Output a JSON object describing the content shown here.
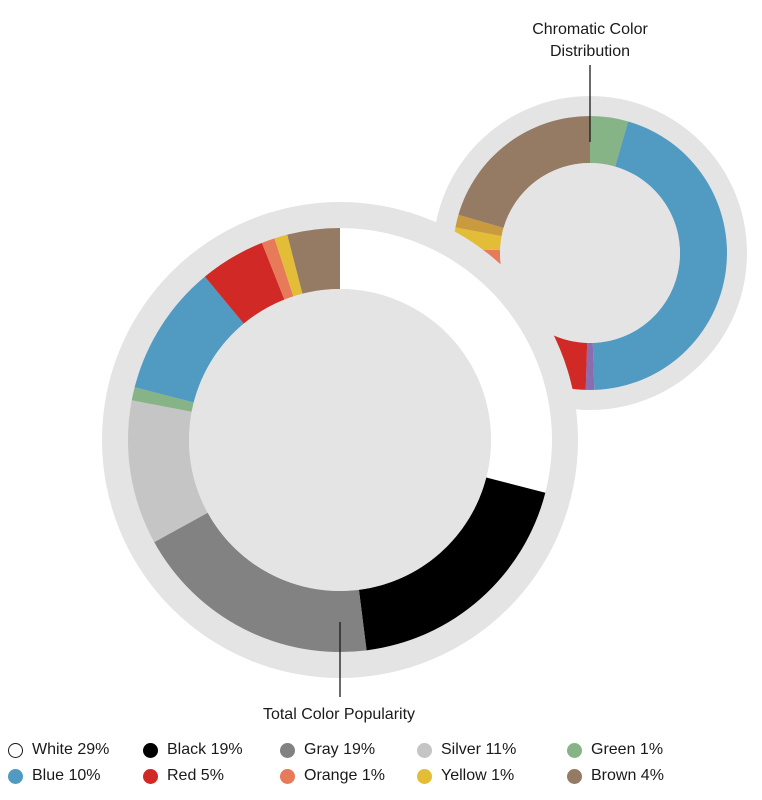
{
  "chart_data": [
    {
      "type": "donut",
      "title": "Total Color Popularity",
      "start_angle_deg": 0,
      "direction": "clockwise",
      "slices": [
        {
          "label": "White",
          "value": 29,
          "color": "#ffffff"
        },
        {
          "label": "Black",
          "value": 19,
          "color": "#000000"
        },
        {
          "label": "Gray",
          "value": 19,
          "color": "#828282"
        },
        {
          "label": "Silver",
          "value": 11,
          "color": "#c5c5c5"
        },
        {
          "label": "Green",
          "value": 1,
          "color": "#86b486"
        },
        {
          "label": "Blue",
          "value": 10,
          "color": "#519bc3"
        },
        {
          "label": "Red",
          "value": 5,
          "color": "#d12a26"
        },
        {
          "label": "Orange",
          "value": 1,
          "color": "#e77a58"
        },
        {
          "label": "Yellow",
          "value": 1,
          "color": "#e4bd38"
        },
        {
          "label": "Brown",
          "value": 4,
          "color": "#957b63"
        }
      ]
    },
    {
      "type": "donut",
      "title": "Chromatic Color Distribution",
      "start_angle_deg": 0,
      "direction": "clockwise",
      "slices": [
        {
          "label": "Green",
          "value": 4.5,
          "color": "#86b486"
        },
        {
          "label": "Blue",
          "value": 45,
          "color": "#519bc3"
        },
        {
          "label": "Purple",
          "value": 1,
          "color": "#8a6db0"
        },
        {
          "label": "Red",
          "value": 21,
          "color": "#d12a26"
        },
        {
          "label": "Orange",
          "value": 4,
          "color": "#e77a58"
        },
        {
          "label": "Yellow",
          "value": 2.5,
          "color": "#e4bd38"
        },
        {
          "label": "Gold",
          "value": 1.5,
          "color": "#c99a3e"
        },
        {
          "label": "Brown",
          "value": 20.5,
          "color": "#957b63"
        }
      ]
    }
  ],
  "labels": {
    "total": "Total Color Popularity",
    "chromatic_line1": "Chromatic Color",
    "chromatic_line2": "Distribution"
  },
  "legend": [
    {
      "text": "White 29%",
      "color": "#ffffff",
      "outlined": true
    },
    {
      "text": "Black 19%",
      "color": "#000000"
    },
    {
      "text": "Gray 19%",
      "color": "#828282"
    },
    {
      "text": "Silver 11%",
      "color": "#c5c5c5"
    },
    {
      "text": "Green 1%",
      "color": "#86b486"
    },
    {
      "text": "Blue 10%",
      "color": "#519bc3"
    },
    {
      "text": "Red 5%",
      "color": "#d12a26"
    },
    {
      "text": "Orange 1%",
      "color": "#e77a58"
    },
    {
      "text": "Yellow 1%",
      "color": "#e4bd38"
    },
    {
      "text": "Brown 4%",
      "color": "#957b63"
    }
  ],
  "colors": {
    "ring_background": "#e4e4e4",
    "leader_line": "#1a1a1a",
    "text": "#1a1a1a"
  }
}
